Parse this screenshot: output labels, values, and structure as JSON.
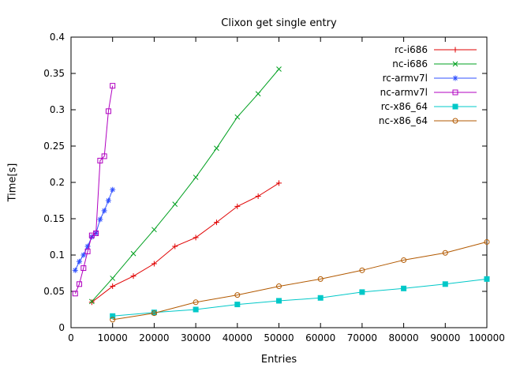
{
  "chart_data": {
    "type": "line",
    "title": "Clixon get single entry",
    "xlabel": "Entries",
    "ylabel": "Time[s]",
    "xlim": [
      0,
      100000
    ],
    "ylim": [
      0,
      0.4
    ],
    "grid": false,
    "legend_position": "top-right-inside",
    "background_color": "#ffffff",
    "axis_color": "#000000",
    "xticks": [
      {
        "v": 0,
        "label": "0"
      },
      {
        "v": 10000,
        "label": "10000"
      },
      {
        "v": 20000,
        "label": "20000"
      },
      {
        "v": 30000,
        "label": "30000"
      },
      {
        "v": 40000,
        "label": "40000"
      },
      {
        "v": 50000,
        "label": "50000"
      },
      {
        "v": 60000,
        "label": "60000"
      },
      {
        "v": 70000,
        "label": "70000"
      },
      {
        "v": 80000,
        "label": "80000"
      },
      {
        "v": 90000,
        "label": "90000"
      },
      {
        "v": 100000,
        "label": "100000"
      }
    ],
    "yticks": [
      {
        "v": 0,
        "label": "0"
      },
      {
        "v": 0.05,
        "label": "0.05"
      },
      {
        "v": 0.1,
        "label": "0.1"
      },
      {
        "v": 0.15,
        "label": "0.15"
      },
      {
        "v": 0.2,
        "label": "0.2"
      },
      {
        "v": 0.25,
        "label": "0.25"
      },
      {
        "v": 0.3,
        "label": "0.3"
      },
      {
        "v": 0.35,
        "label": "0.35"
      },
      {
        "v": 0.4,
        "label": "0.4"
      }
    ],
    "series": [
      {
        "name": "rc-i686",
        "color": "#e00000",
        "marker": "plus",
        "x": [
          5000,
          10000,
          15000,
          20000,
          25000,
          30000,
          35000,
          40000,
          45000,
          50000
        ],
        "y": [
          0.035,
          0.057,
          0.071,
          0.088,
          0.112,
          0.124,
          0.145,
          0.167,
          0.181,
          0.199
        ]
      },
      {
        "name": "nc-i686",
        "color": "#00a020",
        "marker": "cross",
        "x": [
          5000,
          10000,
          15000,
          20000,
          25000,
          30000,
          35000,
          40000,
          45000,
          50000
        ],
        "y": [
          0.036,
          0.068,
          0.102,
          0.135,
          0.17,
          0.207,
          0.247,
          0.29,
          0.322,
          0.356
        ]
      },
      {
        "name": "rc-armv7l",
        "color": "#3050ff",
        "marker": "asterisk",
        "x": [
          1000,
          2000,
          3000,
          4000,
          5000,
          6000,
          7000,
          8000,
          9000,
          10000
        ],
        "y": [
          0.079,
          0.091,
          0.1,
          0.112,
          0.125,
          0.13,
          0.149,
          0.161,
          0.175,
          0.19
        ]
      },
      {
        "name": "nc-armv7l",
        "color": "#b000c0",
        "marker": "square-open",
        "x": [
          1000,
          2000,
          3000,
          4000,
          5000,
          6000,
          7000,
          8000,
          9000,
          10000
        ],
        "y": [
          0.047,
          0.06,
          0.082,
          0.105,
          0.127,
          0.13,
          0.23,
          0.236,
          0.298,
          0.333
        ]
      },
      {
        "name": "rc-x86_64",
        "color": "#00c8c8",
        "marker": "square-filled",
        "x": [
          10000,
          20000,
          30000,
          40000,
          50000,
          60000,
          70000,
          80000,
          90000,
          100000
        ],
        "y": [
          0.016,
          0.021,
          0.025,
          0.032,
          0.037,
          0.041,
          0.049,
          0.054,
          0.06,
          0.067
        ]
      },
      {
        "name": "nc-x86_64",
        "color": "#b25900",
        "marker": "circle-open",
        "x": [
          10000,
          20000,
          30000,
          40000,
          50000,
          60000,
          70000,
          80000,
          90000,
          100000
        ],
        "y": [
          0.011,
          0.02,
          0.035,
          0.045,
          0.057,
          0.067,
          0.079,
          0.093,
          0.103,
          0.118
        ]
      }
    ]
  }
}
